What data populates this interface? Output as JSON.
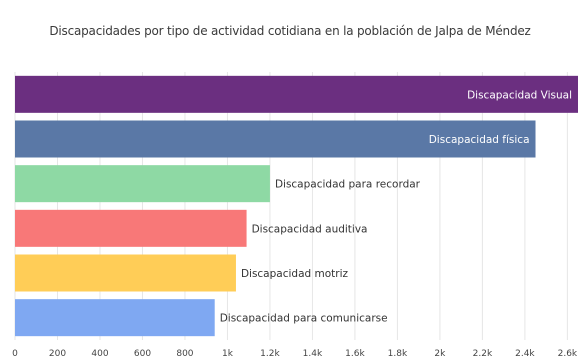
{
  "chart_data": {
    "type": "bar",
    "orientation": "horizontal",
    "title": "Discapacidades por tipo de actividad cotidiana en la población de Jalpa de Méndez",
    "xlabel": "",
    "ylabel": "",
    "xlim": [
      0,
      2650
    ],
    "grid": true,
    "categories": [
      "Discapacidad Visual",
      "Discapacidad física",
      "Discapacidad para recordar",
      "Discapacidad auditiva",
      "Discapacidad motriz",
      "Discapacidad para comunicarse"
    ],
    "values": [
      2650,
      2450,
      1200,
      1090,
      1040,
      940
    ],
    "colors": [
      "#6b2f80",
      "#5a78a6",
      "#8ed9a4",
      "#f87878",
      "#ffcd57",
      "#7fa8f2"
    ],
    "label_colors": [
      "#ffffff",
      "#ffffff",
      "#333333",
      "#333333",
      "#333333",
      "#333333"
    ],
    "ticks": [
      0,
      200,
      400,
      600,
      800,
      1000,
      1200,
      1400,
      1600,
      1800,
      2000,
      2200,
      2400,
      2600
    ],
    "tick_labels": [
      "0",
      "200",
      "400",
      "600",
      "800",
      "1k",
      "1.2k",
      "1.4k",
      "1.6k",
      "1.8k",
      "2k",
      "2.2k",
      "2.4k",
      "2.6k"
    ]
  }
}
